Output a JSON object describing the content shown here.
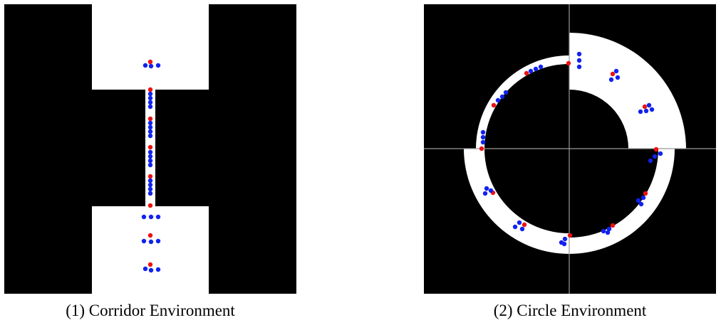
{
  "panels": [
    {
      "caption": "(1) Corridor Environment"
    },
    {
      "caption": "(2) Circle Environment"
    }
  ],
  "colors": {
    "wall": "#000000",
    "free_space": "#ffffff",
    "leader_agent": "#ee1111",
    "follower_agent": "#1122ee",
    "axis_line": "#999999"
  }
}
